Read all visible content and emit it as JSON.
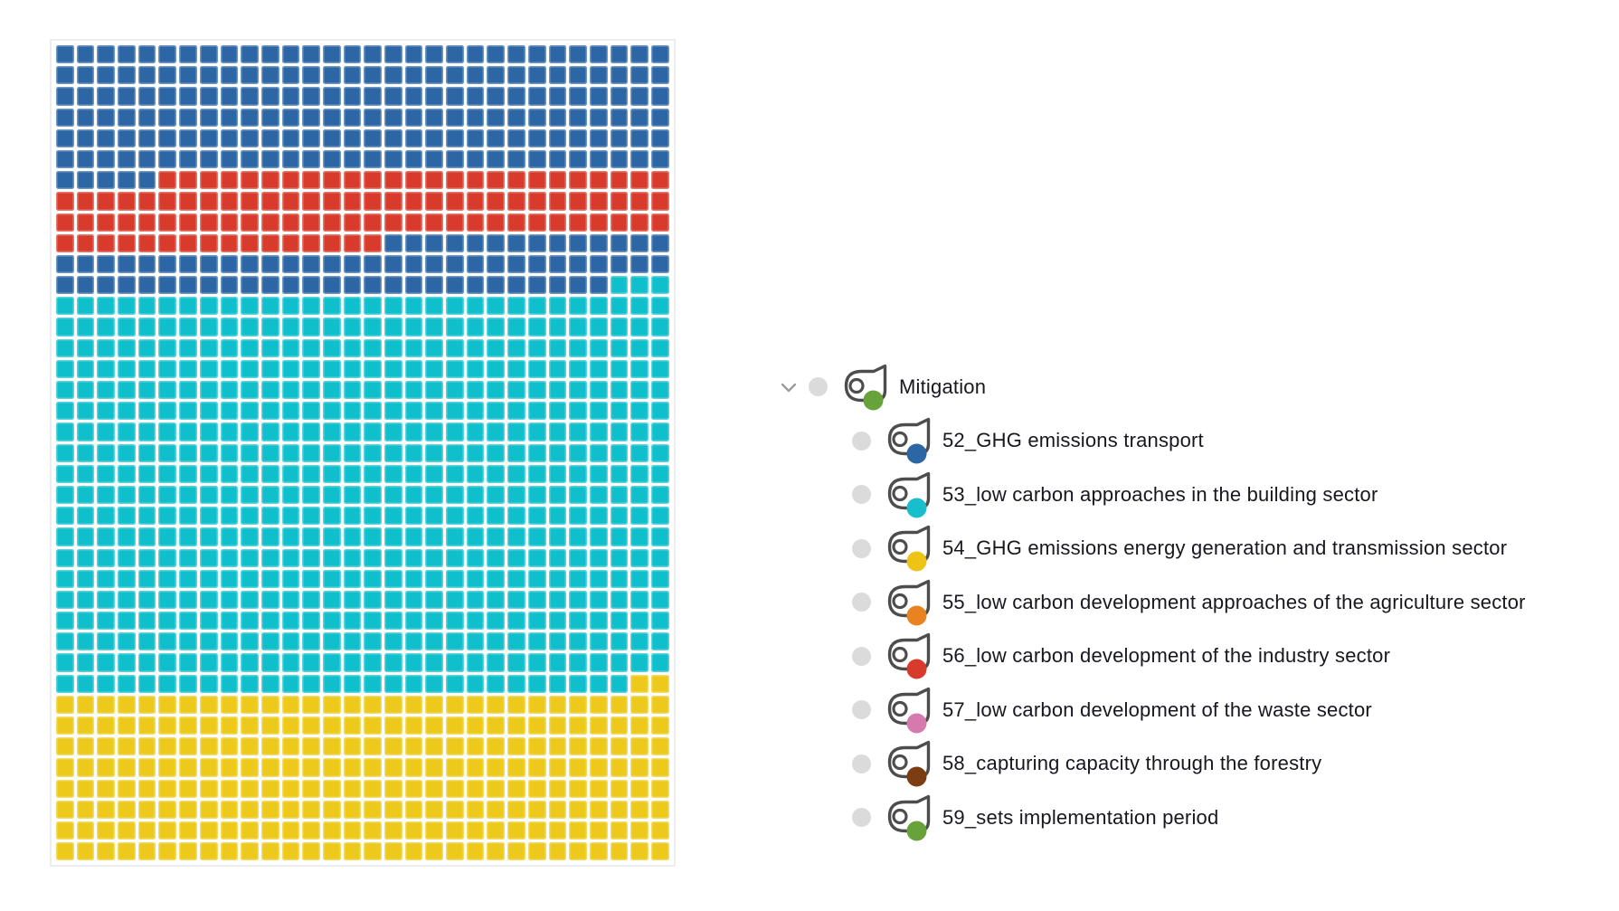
{
  "chart_data": {
    "type": "waffle",
    "columns": 30,
    "rows": 39,
    "total_cells": 1170,
    "grid_gap_color": "#ffffff",
    "cell_colors": {
      "blue": "#2D66A5",
      "red": "#D83A2B",
      "cyan": "#10BFCC",
      "yellow": "#ECC91B"
    },
    "runs": [
      {
        "color_key": "blue",
        "count": 185
      },
      {
        "color_key": "red",
        "count": 101
      },
      {
        "color_key": "blue",
        "count": 71
      },
      {
        "color_key": "cyan",
        "count": 571
      },
      {
        "color_key": "yellow",
        "count": 242
      }
    ],
    "series": [
      {
        "name": "52_GHG emissions transport",
        "color_key": "blue",
        "cells": 256
      },
      {
        "name": "53_low carbon approaches in the building sector",
        "color_key": "cyan",
        "cells": 571
      },
      {
        "name": "54_GHG emissions energy generation and transmission sector",
        "color_key": "yellow",
        "cells": 242
      },
      {
        "name": "56_low carbon development of the industry sector",
        "color_key": "red",
        "cells": 101
      }
    ]
  },
  "legend": {
    "parent": {
      "label": "Mitigation",
      "dot_color": "#67A23B"
    },
    "items": [
      {
        "label": "52_GHG emissions transport",
        "dot_color": "#2D66A5"
      },
      {
        "label": "53_low carbon approaches in the building sector",
        "dot_color": "#17BECB"
      },
      {
        "label": "54_GHG emissions energy generation and transmission sector",
        "dot_color": "#EDC413"
      },
      {
        "label": "55_low carbon development approaches of the agriculture sector",
        "dot_color": "#EA8220"
      },
      {
        "label": "56_low carbon development of the industry sector",
        "dot_color": "#D83A2B"
      },
      {
        "label": "57_low carbon development of the waste sector",
        "dot_color": "#D679AE"
      },
      {
        "label": "58_capturing capacity through the forestry",
        "dot_color": "#7C3D12"
      },
      {
        "label": "59_sets implementation period",
        "dot_color": "#67A23B"
      }
    ]
  }
}
